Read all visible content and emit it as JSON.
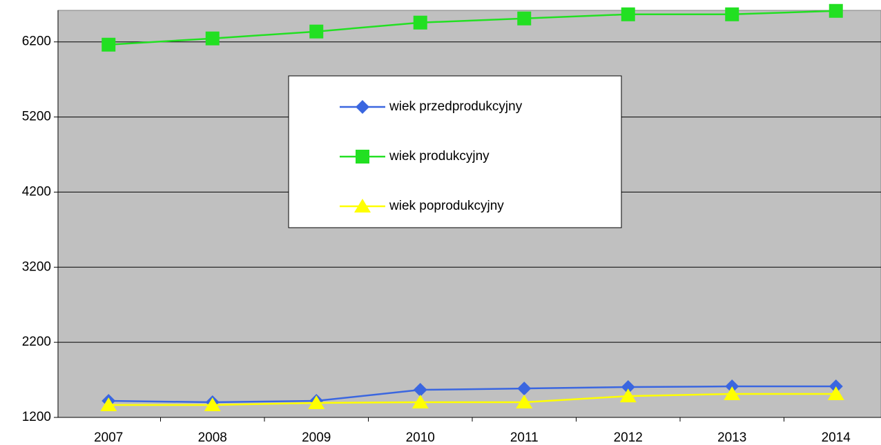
{
  "chart_data": {
    "type": "line",
    "categories": [
      "2007",
      "2008",
      "2009",
      "2010",
      "2011",
      "2012",
      "2013",
      "2014"
    ],
    "series": [
      {
        "name": "wiek przedprodukcyjny",
        "color": "#3a66e0",
        "marker": "diamond",
        "values": [
          1420,
          1402,
          1420,
          1567,
          1585,
          1604,
          1613,
          1613
        ]
      },
      {
        "name": "wiek produkcyjny",
        "color": "#22e022",
        "marker": "square",
        "values": [
          6163,
          6246,
          6338,
          6457,
          6512,
          6567,
          6567,
          6613
        ]
      },
      {
        "name": "wiek poprodukcyjny",
        "color": "#ffff00",
        "marker": "triangle",
        "values": [
          1365,
          1365,
          1393,
          1402,
          1402,
          1484,
          1512,
          1512
        ]
      }
    ],
    "ylim": [
      1200,
      6620
    ],
    "yticks": [
      1200,
      2200,
      3200,
      4200,
      5200,
      6200
    ],
    "grid": true
  }
}
